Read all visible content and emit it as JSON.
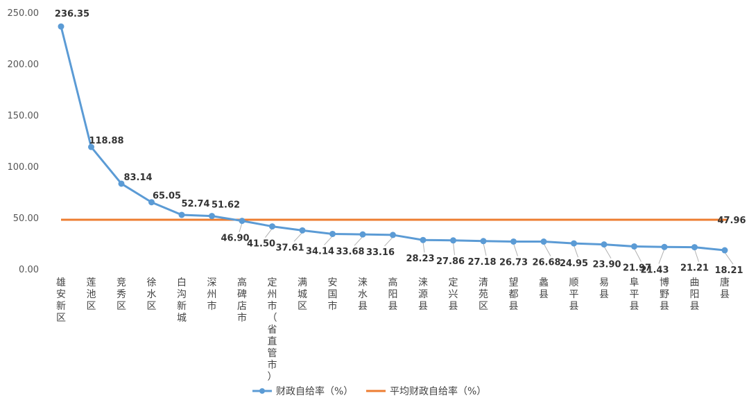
{
  "chart_data": {
    "type": "line",
    "title": "",
    "xlabel": "",
    "ylabel": "",
    "ylim": [
      0,
      250
    ],
    "yticks": [
      "0.00",
      "50.00",
      "100.00",
      "150.00",
      "200.00",
      "250.00"
    ],
    "grid": false,
    "legend_position": "bottom",
    "categories": [
      "雄安新区",
      "莲池区",
      "竞秀区",
      "徐水区",
      "白沟新城",
      "深州市",
      "高碑店市",
      "定州市（省直管市）",
      "满城区",
      "安国市",
      "涞水县",
      "高阳县",
      "涞源县",
      "定兴县",
      "清苑区",
      "望都县",
      "蠡县",
      "顺平县",
      "易县",
      "阜平县",
      "博野县",
      "曲阳县",
      "唐县"
    ],
    "series": [
      {
        "name": "财政自给率（%）",
        "color": "#5B9BD5",
        "values": [
          236.35,
          118.88,
          83.14,
          65.05,
          52.74,
          51.62,
          46.9,
          41.5,
          37.61,
          34.14,
          33.68,
          33.16,
          28.23,
          27.86,
          27.18,
          26.73,
          26.68,
          24.95,
          23.9,
          21.97,
          21.43,
          21.21,
          18.21
        ],
        "labels": [
          "236.35",
          "118.88",
          "83.14",
          "65.05",
          "52.74",
          "51.62",
          "46.90",
          "41.50",
          "37.61",
          "34.14",
          "33.68",
          "33.16",
          "28.23",
          "27.86",
          "27.18",
          "26.73",
          "26.68",
          "24.95",
          "23.90",
          "21.97",
          "21.43",
          "21.21",
          "18.21"
        ]
      },
      {
        "name": "平均财政自给率（%）",
        "color": "#ED7D31",
        "value": 47.96,
        "label": "47.96"
      }
    ]
  }
}
